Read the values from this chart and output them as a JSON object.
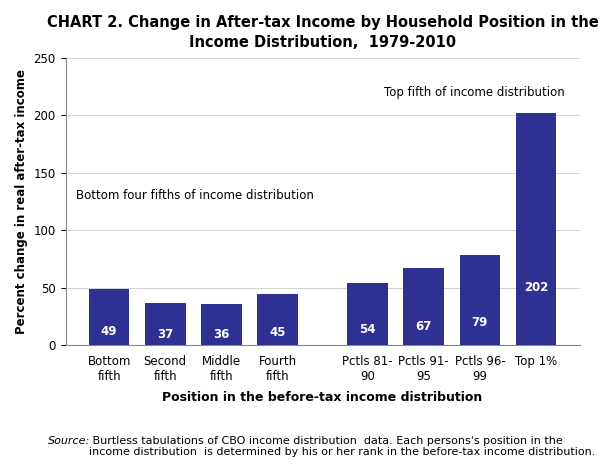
{
  "title_line1": "CHART 2. Change in After-tax Income by Household Position in the",
  "title_line2": "Income Distribution,  1979-2010",
  "categories": [
    "Bottom\nfifth",
    "Second\nfifth",
    "Middle\nfifth",
    "Fourth\nfifth",
    "Pctls 81-\n90",
    "Pctls 91-\n95",
    "Pctls 96-\n99",
    "Top 1%"
  ],
  "values": [
    49,
    37,
    36,
    45,
    54,
    67,
    79,
    202
  ],
  "bar_color": "#2e3192",
  "ylabel": "Percent change in real after-tax income",
  "xlabel": "Position in the before-tax income distribution",
  "ylim": [
    0,
    250
  ],
  "yticks": [
    0,
    50,
    100,
    150,
    200,
    250
  ],
  "annotation_bottom": "Bottom four fifths of income distribution",
  "annotation_top": "Top fifth of income distribution",
  "source_italic": "Source:",
  "source_rest": " Burtless tabulations of CBO income distribution  data. Each persons's position in the\nincome distribution  is determined by his or her rank in the before-tax income distribution.",
  "title_fontsize": 10.5,
  "ylabel_fontsize": 8.5,
  "xlabel_fontsize": 9,
  "tick_fontsize": 8.5,
  "value_label_fontsize": 8.5,
  "annotation_fontsize": 8.5,
  "source_fontsize": 8,
  "x_positions": [
    0,
    1,
    2,
    3,
    4.6,
    5.6,
    6.6,
    7.6
  ],
  "bar_width": 0.72,
  "grid_color": "#cccccc",
  "background_color": "#ffffff"
}
